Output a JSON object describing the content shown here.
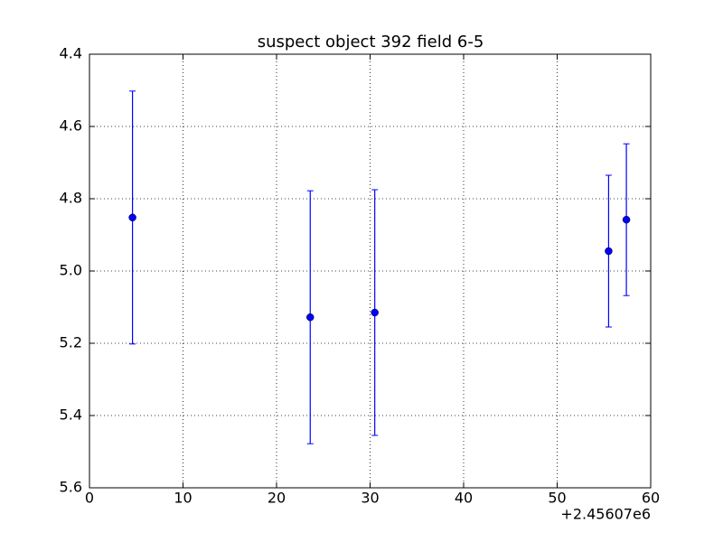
{
  "chart_data": {
    "type": "errorbar",
    "title": "suspect object 392 field 6-5",
    "x_offset_label": "+2.45607e6",
    "series": [
      {
        "color": "#0000ff",
        "x": [
          4.6,
          23.6,
          30.5,
          55.5,
          57.4
        ],
        "values": [
          4.852,
          5.128,
          5.115,
          4.945,
          4.858
        ],
        "errors": [
          0.35,
          0.35,
          0.34,
          0.21,
          0.21
        ]
      }
    ],
    "xlim": [
      0,
      60
    ],
    "xticks": [
      0,
      10,
      20,
      30,
      40,
      50,
      60
    ],
    "ylim": [
      5.6,
      4.4
    ],
    "yticks": [
      4.4,
      4.6,
      4.8,
      {
        "value": 5,
        "label": "5.0"
      },
      5.2,
      5.4,
      5.6
    ],
    "grid": true
  }
}
